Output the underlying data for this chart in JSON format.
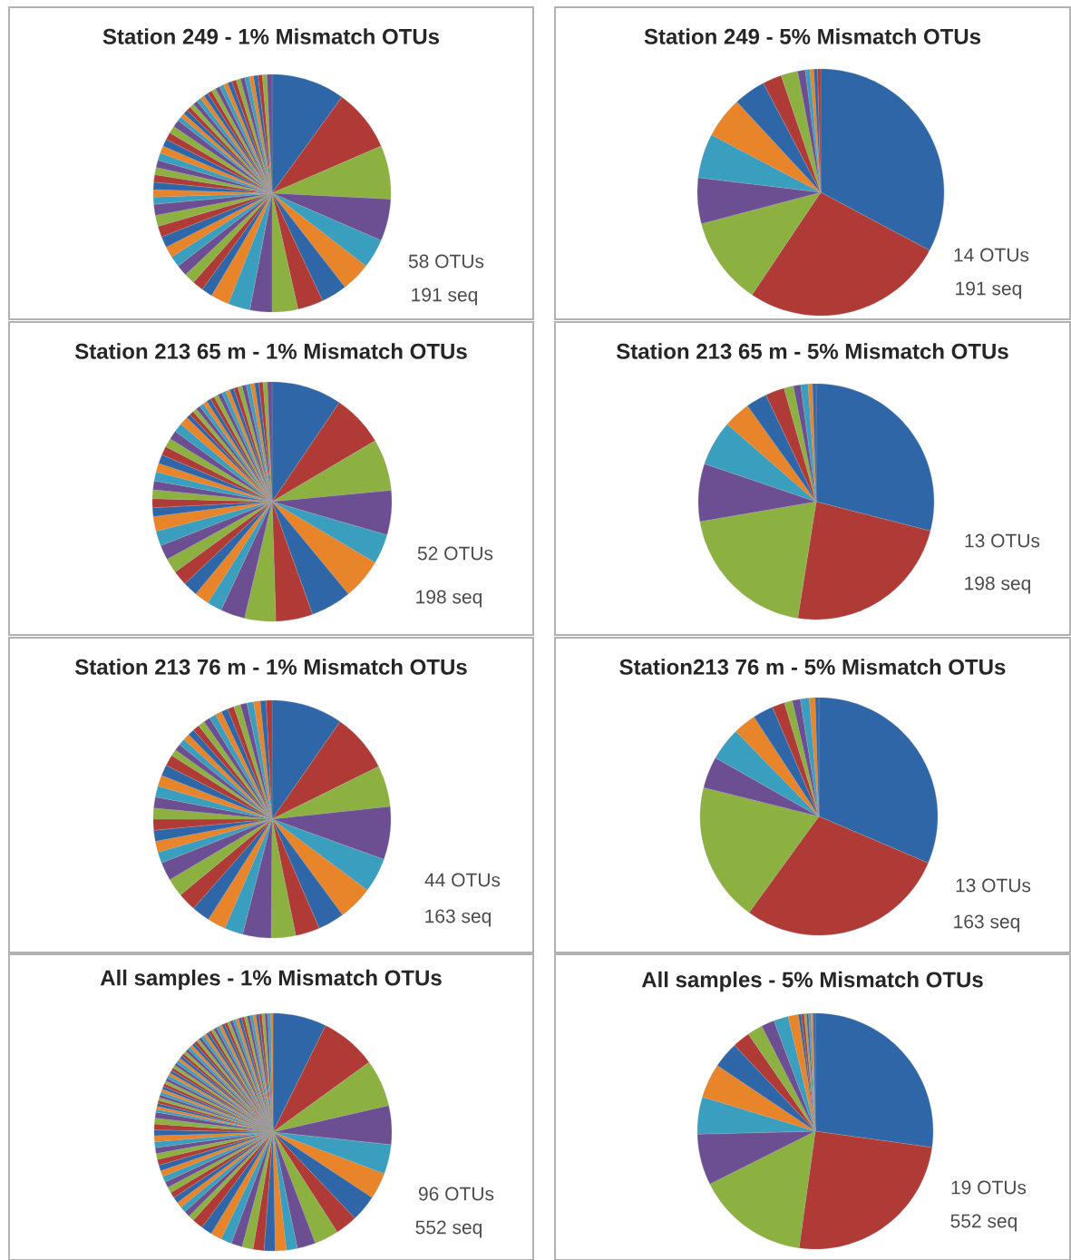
{
  "chart_data": [
    {
      "type": "pie",
      "title": "Station 249 - 1% Mismatch OTUs",
      "categories": [
        null,
        null,
        null,
        null,
        null,
        null,
        null,
        null,
        null,
        null,
        null,
        null,
        null,
        null,
        null,
        null,
        null,
        null,
        null,
        null,
        null,
        null,
        null,
        null,
        null,
        null,
        null,
        null,
        null,
        null,
        null,
        null,
        null,
        null,
        null,
        null,
        null,
        null,
        null,
        null,
        null,
        null,
        null,
        null,
        null,
        null,
        null,
        null,
        null,
        null,
        null,
        null,
        null,
        null,
        null,
        null,
        null,
        null
      ],
      "values": [
        10,
        8.5,
        7.3,
        5.7,
        4,
        4,
        3.5,
        3.5,
        3.5,
        3,
        3,
        2.5,
        1.5,
        1.5,
        1.5,
        1.5,
        1.5,
        1.5,
        1.5,
        1.5,
        1.5,
        1.5,
        1,
        1,
        1,
        1,
        1,
        1,
        1,
        1,
        1,
        1,
        1,
        1,
        0.6,
        0.6,
        0.6,
        0.6,
        0.6,
        0.6,
        0.6,
        0.6,
        0.6,
        0.6,
        0.6,
        0.6,
        0.6,
        0.6,
        0.6,
        0.6,
        0.6,
        0.6,
        0.6,
        0.6,
        0.6,
        0.6,
        0.6,
        0.7
      ],
      "colors": [
        "#2f66a8",
        "#b03a36",
        "#8db140",
        "#6b4f92",
        "#3a9fbf",
        "#e8842a",
        "#2f66a8",
        "#b03a36",
        "#8db140",
        "#6b4f92",
        "#3a9fbf",
        "#e8842a",
        "#2f66a8",
        "#b03a36",
        "#8db140",
        "#6b4f92",
        "#3a9fbf",
        "#e8842a",
        "#2f66a8",
        "#b03a36",
        "#8db140",
        "#6b4f92",
        "#3a9fbf",
        "#e8842a",
        "#2f66a8",
        "#b03a36",
        "#8db140",
        "#6b4f92",
        "#3a9fbf",
        "#e8842a",
        "#2f66a8",
        "#b03a36",
        "#8db140",
        "#6b4f92",
        "#3a9fbf",
        "#e8842a",
        "#2f66a8",
        "#b03a36",
        "#8db140",
        "#6b4f92",
        "#3a9fbf",
        "#e8842a",
        "#2f66a8",
        "#b03a36",
        "#8db140",
        "#6b4f92",
        "#3a9fbf",
        "#e8842a",
        "#2f66a8",
        "#b03a36",
        "#8db140",
        "#6b4f92",
        "#3a9fbf",
        "#e8842a",
        "#2f66a8",
        "#b03a36",
        "#8db140",
        "#6b4f92"
      ],
      "annotations": [
        "58 OTUs",
        "191 seq"
      ]
    },
    {
      "type": "pie",
      "title": "Station 249 - 5% Mismatch OTUs",
      "categories": [
        null,
        null,
        null,
        null,
        null,
        null,
        null,
        null,
        null,
        null,
        null,
        null,
        null,
        null
      ],
      "values": [
        32.8,
        26.6,
        11.5,
        6.0,
        5.8,
        5.4,
        4.2,
        2.5,
        2.2,
        1.0,
        0.6,
        0.5,
        0.5,
        0.4
      ],
      "colors": [
        "#2f66a8",
        "#b03a36",
        "#8db140",
        "#6b4f92",
        "#3a9fbf",
        "#e8842a",
        "#2f66a8",
        "#b03a36",
        "#8db140",
        "#6b4f92",
        "#3a9fbf",
        "#e8842a",
        "#2f66a8",
        "#b03a36"
      ],
      "annotations": [
        "14 OTUs",
        "191 seq"
      ]
    },
    {
      "type": "pie",
      "title": "Station 213 65 m - 1% Mismatch OTUs",
      "categories": [
        null,
        null,
        null,
        null,
        null,
        null,
        null,
        null,
        null,
        null,
        null,
        null,
        null,
        null,
        null,
        null,
        null,
        null,
        null,
        null,
        null,
        null,
        null,
        null,
        null,
        null,
        null,
        null,
        null,
        null,
        null,
        null,
        null,
        null,
        null,
        null,
        null,
        null,
        null,
        null,
        null,
        null,
        null,
        null,
        null,
        null,
        null,
        null,
        null,
        null,
        null,
        null
      ],
      "values": [
        9.5,
        7,
        7,
        6,
        4,
        5.5,
        5.5,
        5,
        4.2,
        3.3,
        2,
        2,
        2,
        2,
        2,
        2,
        2,
        2,
        1.2,
        1.2,
        1.2,
        1.2,
        1.2,
        1.2,
        1.2,
        1.2,
        1.2,
        1.2,
        1.2,
        1.2,
        0.57,
        0.57,
        0.57,
        0.57,
        0.57,
        0.57,
        0.57,
        0.57,
        0.57,
        0.57,
        0.57,
        0.57,
        0.57,
        0.57,
        0.57,
        0.57,
        0.57,
        0.57,
        0.57,
        0.57,
        0.57,
        0.63
      ],
      "colors": [
        "#2f66a8",
        "#b03a36",
        "#8db140",
        "#6b4f92",
        "#3a9fbf",
        "#e8842a",
        "#2f66a8",
        "#b03a36",
        "#8db140",
        "#6b4f92",
        "#3a9fbf",
        "#e8842a",
        "#2f66a8",
        "#b03a36",
        "#8db140",
        "#6b4f92",
        "#3a9fbf",
        "#e8842a",
        "#2f66a8",
        "#b03a36",
        "#8db140",
        "#6b4f92",
        "#3a9fbf",
        "#e8842a",
        "#2f66a8",
        "#b03a36",
        "#8db140",
        "#6b4f92",
        "#3a9fbf",
        "#e8842a",
        "#2f66a8",
        "#b03a36",
        "#8db140",
        "#6b4f92",
        "#3a9fbf",
        "#e8842a",
        "#2f66a8",
        "#b03a36",
        "#8db140",
        "#6b4f92",
        "#3a9fbf",
        "#e8842a",
        "#2f66a8",
        "#b03a36",
        "#8db140",
        "#6b4f92",
        "#3a9fbf",
        "#e8842a",
        "#2f66a8",
        "#b03a36",
        "#8db140",
        "#6b4f92"
      ],
      "annotations": [
        "52 OTUs",
        "198 seq"
      ]
    },
    {
      "type": "pie",
      "title": "Station 213 65 m - 5% Mismatch OTUs",
      "categories": [
        null,
        null,
        null,
        null,
        null,
        null,
        null,
        null,
        null,
        null,
        null,
        null,
        null
      ],
      "values": [
        29,
        23.5,
        19.8,
        7.9,
        6.2,
        3.7,
        2.9,
        2.6,
        1.3,
        1.0,
        1.0,
        0.6,
        0.5
      ],
      "colors": [
        "#2f66a8",
        "#b03a36",
        "#8db140",
        "#6b4f92",
        "#3a9fbf",
        "#e8842a",
        "#2f66a8",
        "#b03a36",
        "#8db140",
        "#6b4f92",
        "#3a9fbf",
        "#e8842a",
        "#2f66a8"
      ],
      "annotations": [
        "13 OTUs",
        "198 seq"
      ]
    },
    {
      "type": "pie",
      "title": "Station 213 76 m - 1% Mismatch OTUs",
      "categories": [
        null,
        null,
        null,
        null,
        null,
        null,
        null,
        null,
        null,
        null,
        null,
        null,
        null,
        null,
        null,
        null,
        null,
        null,
        null,
        null,
        null,
        null,
        null,
        null,
        null,
        null,
        null,
        null,
        null,
        null,
        null,
        null,
        null,
        null,
        null,
        null,
        null,
        null,
        null,
        null,
        null,
        null,
        null,
        null
      ],
      "values": [
        9.7,
        8,
        5.6,
        7.2,
        4.7,
        4.7,
        3.6,
        3.3,
        3.3,
        3.9,
        2.5,
        2.5,
        2.5,
        2.5,
        2.5,
        2.5,
        1.5,
        1.5,
        1.5,
        1.5,
        1.5,
        1.5,
        1.5,
        1.5,
        1.5,
        1.5,
        0.9,
        0.9,
        0.9,
        0.9,
        0.9,
        0.9,
        0.9,
        0.9,
        0.9,
        0.9,
        0.9,
        0.9,
        0.9,
        0.9,
        0.9,
        0.9,
        0.8,
        0.8
      ],
      "colors": [
        "#2f66a8",
        "#b03a36",
        "#8db140",
        "#6b4f92",
        "#3a9fbf",
        "#e8842a",
        "#2f66a8",
        "#b03a36",
        "#8db140",
        "#6b4f92",
        "#3a9fbf",
        "#e8842a",
        "#2f66a8",
        "#b03a36",
        "#8db140",
        "#6b4f92",
        "#3a9fbf",
        "#e8842a",
        "#2f66a8",
        "#b03a36",
        "#8db140",
        "#6b4f92",
        "#3a9fbf",
        "#e8842a",
        "#2f66a8",
        "#b03a36",
        "#8db140",
        "#6b4f92",
        "#3a9fbf",
        "#e8842a",
        "#2f66a8",
        "#b03a36",
        "#8db140",
        "#6b4f92",
        "#3a9fbf",
        "#e8842a",
        "#2f66a8",
        "#b03a36",
        "#8db140",
        "#6b4f92",
        "#3a9fbf",
        "#e8842a",
        "#2f66a8",
        "#b03a36"
      ],
      "annotations": [
        "44 OTUs",
        "163 seq"
      ]
    },
    {
      "type": "pie",
      "title": "Station213 76 m - 5% Mismatch OTUs",
      "categories": [
        null,
        null,
        null,
        null,
        null,
        null,
        null,
        null,
        null,
        null,
        null,
        null,
        null
      ],
      "values": [
        31.4,
        28.6,
        18.9,
        4.3,
        4.5,
        3.1,
        2.8,
        1.7,
        1.1,
        1.1,
        1.2,
        0.8,
        0.5
      ],
      "colors": [
        "#2f66a8",
        "#b03a36",
        "#8db140",
        "#6b4f92",
        "#3a9fbf",
        "#e8842a",
        "#2f66a8",
        "#b03a36",
        "#8db140",
        "#6b4f92",
        "#3a9fbf",
        "#e8842a",
        "#2f66a8"
      ],
      "annotations": [
        "13 OTUs",
        "163 seq"
      ]
    },
    {
      "type": "pie",
      "title": "All samples - 1% Mismatch OTUs",
      "categories": [
        null,
        null,
        null,
        null,
        null,
        null,
        null,
        null,
        null,
        null,
        null,
        null,
        null,
        null,
        null,
        null,
        null,
        null,
        null,
        null,
        null,
        null,
        null,
        null,
        null,
        null,
        null,
        null,
        null,
        null,
        null,
        null,
        null,
        null,
        null,
        null,
        null,
        null,
        null,
        null,
        null,
        null,
        null,
        null,
        null,
        null,
        null,
        null,
        null,
        null,
        null,
        null,
        null,
        null,
        null,
        null,
        null,
        null,
        null,
        null,
        null,
        null,
        null,
        null,
        null,
        null,
        null,
        null,
        null,
        null,
        null,
        null,
        null,
        null,
        null,
        null,
        null,
        null,
        null,
        null,
        null,
        null,
        null,
        null,
        null,
        null,
        null,
        null,
        null,
        null,
        null,
        null,
        null,
        null,
        null,
        null
      ],
      "values": [
        7.3,
        7.7,
        6.4,
        5.3,
        4,
        3.6,
        3.6,
        3,
        3.3,
        2.5,
        1.5,
        1.5,
        1.5,
        1.5,
        1.5,
        1.5,
        1.5,
        1.5,
        1.5,
        1.5,
        0.8,
        0.8,
        0.8,
        0.8,
        0.8,
        0.8,
        0.8,
        0.8,
        0.8,
        0.8,
        0.8,
        0.8,
        0.8,
        0.8,
        0.8,
        0.8,
        0.8,
        0.8,
        0.8,
        0.8,
        0.4,
        0.4,
        0.4,
        0.4,
        0.4,
        0.4,
        0.4,
        0.4,
        0.4,
        0.4,
        0.4,
        0.4,
        0.4,
        0.4,
        0.4,
        0.4,
        0.4,
        0.4,
        0.4,
        0.4,
        0.4,
        0.4,
        0.4,
        0.4,
        0.4,
        0.4,
        0.4,
        0.4,
        0.4,
        0.4,
        0.4,
        0.4,
        0.4,
        0.4,
        0.4,
        0.4,
        0.4,
        0.4,
        0.4,
        0.4,
        0.4,
        0.4,
        0.4,
        0.4,
        0.4,
        0.4,
        0.4,
        0.4,
        0.4,
        0.4,
        0.4,
        0.4,
        0.4,
        0.4,
        0.4,
        0.3
      ],
      "colors": [
        "#2f66a8",
        "#b03a36",
        "#8db140",
        "#6b4f92",
        "#3a9fbf",
        "#e8842a",
        "#2f66a8",
        "#b03a36",
        "#8db140",
        "#6b4f92",
        "#3a9fbf",
        "#e8842a",
        "#2f66a8",
        "#b03a36",
        "#8db140",
        "#6b4f92",
        "#3a9fbf",
        "#e8842a",
        "#2f66a8",
        "#b03a36",
        "#8db140",
        "#6b4f92",
        "#3a9fbf",
        "#e8842a",
        "#2f66a8",
        "#b03a36",
        "#8db140",
        "#6b4f92",
        "#3a9fbf",
        "#e8842a",
        "#2f66a8",
        "#b03a36",
        "#8db140",
        "#6b4f92",
        "#3a9fbf",
        "#e8842a",
        "#2f66a8",
        "#b03a36",
        "#8db140",
        "#6b4f92",
        "#3a9fbf",
        "#e8842a",
        "#2f66a8",
        "#b03a36",
        "#8db140",
        "#6b4f92",
        "#3a9fbf",
        "#e8842a",
        "#2f66a8",
        "#b03a36",
        "#8db140",
        "#6b4f92",
        "#3a9fbf",
        "#e8842a",
        "#2f66a8",
        "#b03a36",
        "#8db140",
        "#6b4f92",
        "#3a9fbf",
        "#e8842a",
        "#2f66a8",
        "#b03a36",
        "#8db140",
        "#6b4f92",
        "#3a9fbf",
        "#e8842a",
        "#2f66a8",
        "#b03a36",
        "#8db140",
        "#6b4f92",
        "#3a9fbf",
        "#e8842a",
        "#2f66a8",
        "#b03a36",
        "#8db140",
        "#6b4f92",
        "#3a9fbf",
        "#e8842a",
        "#2f66a8",
        "#b03a36",
        "#8db140",
        "#6b4f92",
        "#3a9fbf",
        "#e8842a",
        "#2f66a8",
        "#b03a36",
        "#8db140",
        "#6b4f92",
        "#3a9fbf",
        "#e8842a",
        "#2f66a8",
        "#b03a36",
        "#8db140",
        "#6b4f92",
        "#3a9fbf",
        "#e8842a"
      ],
      "annotations": [
        "96 OTUs",
        "552 seq"
      ]
    },
    {
      "type": "pie",
      "title": "All samples - 5% Mismatch OTUs",
      "categories": [
        null,
        null,
        null,
        null,
        null,
        null,
        null,
        null,
        null,
        null,
        null,
        null,
        null,
        null,
        null,
        null,
        null,
        null,
        null
      ],
      "values": [
        27.2,
        25,
        15.4,
        7,
        5.1,
        4.7,
        3.6,
        2.4,
        2.1,
        1.8,
        2,
        1.4,
        0.4,
        0.4,
        0.3,
        0.3,
        0.3,
        0.3,
        0.3
      ],
      "colors": [
        "#2f66a8",
        "#b03a36",
        "#8db140",
        "#6b4f92",
        "#3a9fbf",
        "#e8842a",
        "#2f66a8",
        "#b03a36",
        "#8db140",
        "#6b4f92",
        "#3a9fbf",
        "#e8842a",
        "#2f66a8",
        "#b03a36",
        "#8db140",
        "#6b4f92",
        "#3a9fbf",
        "#e8842a",
        "#2f66a8"
      ],
      "annotations": [
        "19 OTUs",
        "552 seq"
      ]
    }
  ]
}
